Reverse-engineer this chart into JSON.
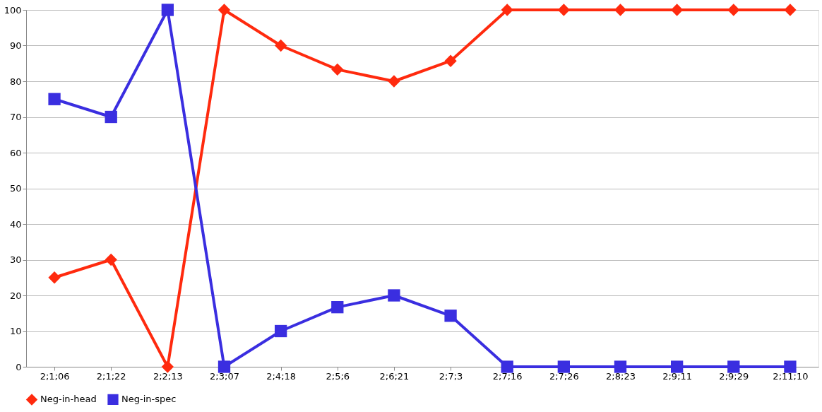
{
  "chart_data": {
    "type": "line",
    "categories": [
      "2;1;06",
      "2;1;22",
      "2;2;13",
      "2;3;07",
      "2;4;18",
      "2;5;6",
      "2;6;21",
      "2;7;3",
      "2;7;16",
      "2;7;26",
      "2;8;23",
      "2;9;11",
      "2;9;29",
      "2;11;10"
    ],
    "series": [
      {
        "name": "Neg-in-head",
        "color": "#ff2a0e",
        "marker": "diamond",
        "values": [
          25,
          30,
          0,
          100,
          90,
          83.3,
          80,
          85.7,
          100,
          100,
          100,
          100,
          100,
          100
        ]
      },
      {
        "name": "Neg-in-spec",
        "color": "#3a2ee0",
        "marker": "square",
        "values": [
          75,
          70,
          100,
          0,
          10,
          16.7,
          20,
          14.3,
          0,
          0,
          0,
          0,
          0,
          0
        ]
      }
    ],
    "ylim": [
      0,
      100
    ],
    "yticks": [
      0,
      10,
      20,
      30,
      40,
      50,
      60,
      70,
      80,
      90,
      100
    ],
    "grid": "y",
    "legend": "bottom",
    "line_style": "solid"
  }
}
